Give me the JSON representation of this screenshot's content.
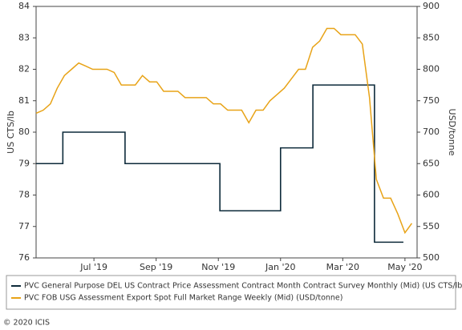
{
  "chart_data": {
    "type": "line",
    "y_label": "US CTS/lb",
    "y2_label": "USD/tonne",
    "xlim": [
      4.14,
      16.39
    ],
    "xticks": [
      {
        "value": 6,
        "label": "Jul '19"
      },
      {
        "value": 8,
        "label": "Sep '19"
      },
      {
        "value": 10,
        "label": "Nov '19"
      },
      {
        "value": 12,
        "label": "Jan '20"
      },
      {
        "value": 14,
        "label": "Mar '20"
      },
      {
        "value": 16,
        "label": "May '20"
      }
    ],
    "ylim": [
      76,
      84
    ],
    "yticks": [
      76,
      77,
      78,
      79,
      80,
      81,
      82,
      83,
      84
    ],
    "y2lim": [
      500,
      900
    ],
    "y2ticks": [
      500,
      550,
      600,
      650,
      700,
      750,
      800,
      850,
      900
    ],
    "series": [
      {
        "name": "PVC General Purpose DEL US Contract Price Assessment Contract Month Contract Survey Monthly (Mid) (US CTS/lb)",
        "color": "#0d2a3a",
        "step": true,
        "x": [
          4.14,
          5.0,
          7.0,
          10.05,
          12.0,
          13.04,
          15.02,
          15.95
        ],
        "values": [
          79,
          80,
          79,
          77.5,
          79.5,
          81.5,
          76.5,
          76.5
        ]
      },
      {
        "name": "PVC FOB USG Assessment Export Spot Full Market Range Weekly (Mid) (USD/tonne)",
        "color": "#e8a317",
        "axis": "y2",
        "x": [
          4.14,
          4.37,
          4.6,
          4.82,
          5.05,
          5.28,
          5.51,
          5.74,
          5.96,
          6.19,
          6.42,
          6.65,
          6.88,
          7.1,
          7.33,
          7.56,
          7.79,
          8.02,
          8.24,
          8.47,
          8.7,
          8.93,
          9.16,
          9.38,
          9.61,
          9.84,
          10.07,
          10.3,
          10.52,
          10.75,
          10.98,
          11.21,
          11.44,
          11.66,
          11.89,
          12.12,
          12.35,
          12.58,
          12.8,
          13.03,
          13.26,
          13.49,
          13.72,
          13.94,
          14.17,
          14.4,
          14.63,
          14.86,
          15.08,
          15.31,
          15.54,
          15.77,
          16.0,
          16.22
        ],
        "values": [
          730,
          735,
          745,
          770,
          790,
          800,
          810,
          805,
          800,
          800,
          800,
          795,
          775,
          775,
          775,
          790,
          780,
          780,
          765,
          765,
          765,
          755,
          755,
          755,
          755,
          745,
          745,
          735,
          735,
          735,
          715,
          735,
          735,
          750,
          760,
          770,
          785,
          800,
          800,
          835,
          845,
          865,
          865,
          855,
          855,
          855,
          840,
          755,
          625,
          595,
          595,
          570,
          540,
          555
        ]
      }
    ],
    "copyright": "© 2020 ICIS"
  }
}
